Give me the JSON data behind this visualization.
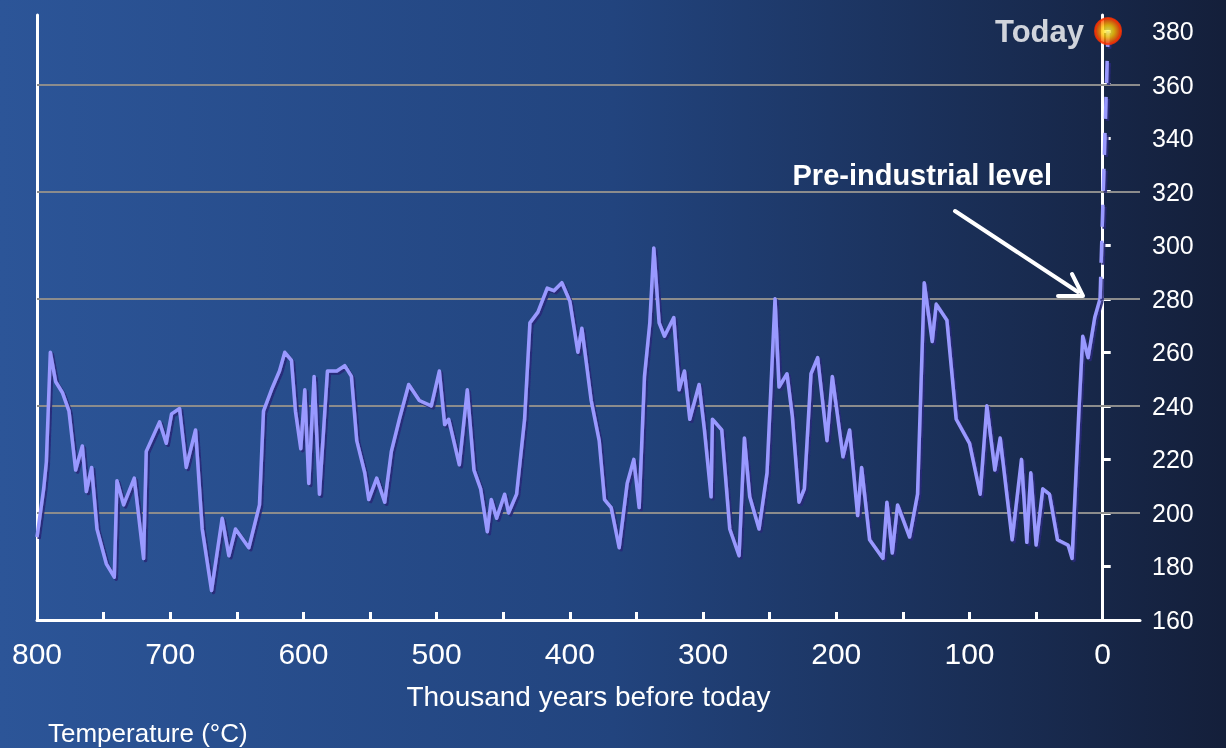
{
  "chart_data": {
    "type": "line",
    "xlabel": "Thousand years before today",
    "xlim": [
      800,
      -28
    ],
    "xticks": [
      800,
      {
        "value": 750,
        "label": null
      },
      700,
      {
        "value": 650,
        "label": null
      },
      600,
      {
        "value": 550,
        "label": null
      },
      500,
      {
        "value": 450,
        "label": null
      },
      400,
      {
        "value": 350,
        "label": null
      },
      300,
      {
        "value": 250,
        "label": null
      },
      200,
      {
        "value": 150,
        "label": null
      },
      100,
      {
        "value": 50,
        "label": null
      },
      0
    ],
    "ylim": [
      160,
      386
    ],
    "yticks": [
      160,
      180,
      200,
      220,
      240,
      260,
      280,
      300,
      320,
      340,
      360,
      380
    ],
    "marker": "none",
    "series": [
      {
        "color": "#9999ff",
        "x": [
          800,
          795,
          793,
          790,
          786,
          781,
          776,
          771,
          766,
          763,
          759,
          755,
          748,
          742,
          740,
          735,
          727,
          720,
          718,
          708,
          703,
          699,
          693,
          688,
          681,
          676,
          669,
          661,
          656,
          651,
          641,
          633,
          630,
          624,
          618,
          614,
          609,
          606,
          602,
          599,
          596,
          592,
          588,
          582,
          575,
          569,
          564,
          560,
          554,
          551,
          545,
          539,
          534,
          528,
          521,
          513,
          504,
          498,
          494,
          491,
          483,
          477,
          472,
          467,
          462,
          459,
          455,
          449,
          446,
          440,
          434,
          430,
          424,
          417,
          412,
          406,
          400,
          394,
          391,
          384,
          378,
          374,
          369,
          363,
          357,
          352,
          348,
          344,
          340,
          337,
          333,
          329,
          322,
          318,
          314,
          310,
          303,
          299,
          294,
          293,
          286,
          280,
          273,
          269,
          265,
          258,
          252,
          246,
          243,
          237,
          233,
          228,
          224,
          219,
          214,
          207,
          203,
          195,
          190,
          184,
          181,
          175,
          165,
          162,
          158,
          154,
          145,
          139,
          134,
          128,
          125,
          117,
          110,
          100,
          92,
          87,
          81,
          77,
          68,
          61,
          57,
          54,
          50,
          45,
          40,
          34,
          26,
          23,
          18,
          15,
          11,
          6,
          2
        ],
        "values": [
          191,
          209,
          219,
          260,
          249,
          245,
          238,
          216,
          225,
          208,
          217,
          194,
          181,
          176,
          212,
          203,
          213,
          183,
          223,
          234,
          226,
          237,
          239,
          217,
          231,
          194,
          171,
          198,
          184,
          194,
          187,
          203,
          238,
          246,
          253,
          260,
          257,
          238,
          224,
          246,
          211,
          251,
          207,
          253,
          253,
          255,
          251,
          227,
          215,
          205,
          213,
          204,
          223,
          235,
          248,
          242,
          240,
          253,
          233,
          235,
          218,
          246,
          216,
          209,
          193,
          205,
          198,
          207,
          200,
          207,
          235,
          271,
          275,
          284,
          283,
          286,
          279,
          260,
          269,
          242,
          227,
          205,
          202,
          187,
          211,
          220,
          202,
          251,
          271,
          299,
          271,
          266,
          273,
          246,
          253,
          235,
          248,
          231,
          206,
          235,
          231,
          194,
          184,
          228,
          206,
          194,
          215,
          280,
          247,
          252,
          236,
          204,
          209,
          252,
          258,
          227,
          251,
          221,
          231,
          199,
          217,
          190,
          183,
          204,
          185,
          203,
          191,
          207,
          286,
          264,
          278,
          272,
          235,
          226,
          207,
          240,
          216,
          228,
          190,
          220,
          189,
          215,
          188,
          209,
          207,
          190,
          188,
          183,
          237,
          266,
          258,
          273,
          280
        ]
      },
      {
        "color": "#9999ff",
        "line_style": "dashed",
        "x": [
          2,
          -4
        ],
        "values": [
          280,
          380
        ]
      },
      {
        "name": "Today",
        "type": "scatter",
        "marker": "circle",
        "color": "#ff3300",
        "x": [
          -4
        ],
        "values": [
          380
        ]
      }
    ],
    "ref_lines": [
      {
        "axis": "y",
        "value": 200,
        "color": "#8c8c8c"
      },
      {
        "axis": "y",
        "value": 240,
        "color": "#8c8c8c"
      },
      {
        "axis": "y",
        "value": 280,
        "color": "#8c8c8c"
      },
      {
        "axis": "y",
        "value": 320,
        "color": "#8c8c8c"
      },
      {
        "axis": "y",
        "value": 360,
        "color": "#8c8c8c"
      }
    ],
    "annotations": [
      "Pre-industrial level",
      "Temperature (°C)"
    ]
  }
}
